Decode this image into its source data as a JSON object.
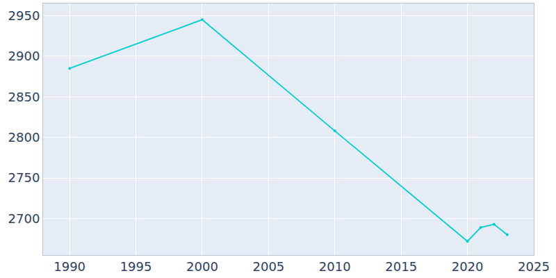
{
  "chart_data": {
    "type": "line",
    "x": [
      1990,
      2000,
      2010,
      2020,
      2021,
      2022,
      2023
    ],
    "values": [
      2885,
      2945,
      2808,
      2672,
      2689,
      2693,
      2680
    ],
    "color": "#00ced1",
    "marker": "circle",
    "xlim": [
      1988,
      2025
    ],
    "xticks": [
      1990,
      1995,
      2000,
      2005,
      2010,
      2015,
      2020,
      2025
    ],
    "ylim": [
      2655,
      2965
    ],
    "yticks": [
      2700,
      2750,
      2800,
      2850,
      2900,
      2950
    ],
    "grid": true
  }
}
